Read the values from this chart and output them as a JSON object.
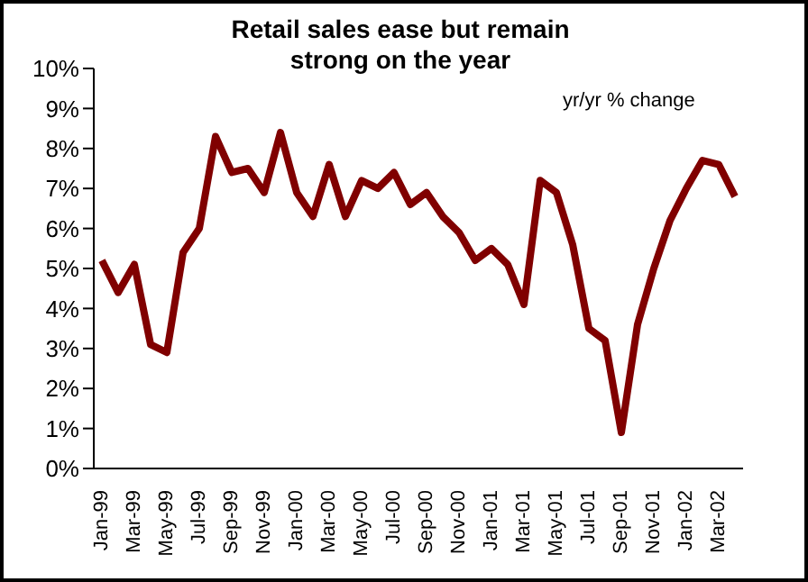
{
  "chart_data": {
    "type": "line",
    "title": "Retail sales ease but remain strong on the year",
    "annotations": [
      "yr/yr % change"
    ],
    "categories": [
      "Jan-99",
      null,
      "Mar-99",
      null,
      "May-99",
      null,
      "Jul-99",
      null,
      "Sep-99",
      null,
      "Nov-99",
      null,
      "Jan-00",
      null,
      "Mar-00",
      null,
      "May-00",
      null,
      "Jul-00",
      null,
      "Sep-00",
      null,
      "Nov-00",
      null,
      "Jan-01",
      null,
      "Mar-01",
      null,
      "May-01",
      null,
      "Jul-01",
      null,
      "Sep-01",
      null,
      "Nov-01",
      null,
      "Jan-02",
      null,
      "Mar-02",
      null
    ],
    "series": [
      {
        "color": "#800000",
        "values": [
          5.2,
          4.4,
          5.1,
          3.1,
          2.9,
          5.4,
          6.0,
          8.3,
          7.4,
          7.5,
          6.9,
          8.4,
          6.9,
          6.3,
          7.6,
          6.3,
          7.2,
          7.0,
          7.4,
          6.6,
          6.9,
          6.3,
          5.9,
          5.2,
          5.5,
          5.1,
          4.1,
          7.2,
          6.9,
          5.6,
          3.5,
          3.2,
          0.9,
          3.6,
          5.0,
          6.2,
          7.0,
          7.7,
          7.6,
          6.8
        ]
      }
    ],
    "ylim": [
      0,
      10
    ],
    "yticks": [
      {
        "value": 0,
        "label": "0%"
      },
      {
        "value": 1,
        "label": "1%"
      },
      {
        "value": 2,
        "label": "2%"
      },
      {
        "value": 3,
        "label": "3%"
      },
      {
        "value": 4,
        "label": "4%"
      },
      {
        "value": 5,
        "label": "5%"
      },
      {
        "value": 6,
        "label": "6%"
      },
      {
        "value": 7,
        "label": "7%"
      },
      {
        "value": 8,
        "label": "8%"
      },
      {
        "value": 9,
        "label": "9%"
      },
      {
        "value": 10,
        "label": "10%"
      }
    ],
    "grid": false,
    "legend": false,
    "marker": "none",
    "line_style": "solid"
  }
}
